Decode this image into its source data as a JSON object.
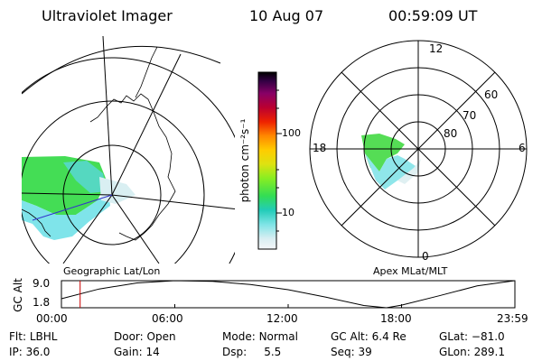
{
  "header": {
    "title": "Ultraviolet Imager",
    "date": "10 Aug 07",
    "time": "00:59:09 UT"
  },
  "colors": {
    "ink": "#000000",
    "marker": "#cc0000",
    "track": "#3333cc"
  },
  "left_panel": {
    "caption": "Geographic Lat/Lon"
  },
  "right_panel": {
    "caption": "Apex MLat/MLT",
    "mlt_labels": [
      "12",
      "18",
      "6",
      "0"
    ],
    "mlat_labels": [
      "60",
      "70",
      "80"
    ]
  },
  "colorbar": {
    "axis_label": "photon cm⁻²s⁻¹",
    "ticks": [
      "100",
      "10"
    ]
  },
  "chart_data": [
    {
      "type": "line",
      "title": "",
      "ylabel": "GC Alt",
      "yticks": [
        "9.0",
        "1.8"
      ],
      "ylim": [
        1.8,
        9.0
      ],
      "xlim": [
        0,
        24
      ],
      "xticks": [
        "00:00",
        "06:00",
        "12:00",
        "18:00",
        "23:59"
      ],
      "series": [
        {
          "x": [
            0,
            2,
            4,
            6,
            8,
            10,
            12,
            14,
            16,
            17.2,
            18,
            20,
            22,
            23.98
          ],
          "y": [
            4.2,
            6.8,
            8.4,
            9.0,
            8.8,
            8.0,
            6.6,
            4.6,
            2.4,
            1.8,
            2.5,
            5.0,
            7.6,
            9.0
          ]
        }
      ],
      "marker_x": 0.99
    }
  ],
  "info": {
    "rows": [
      [
        {
          "label": "Flt:",
          "value": "LBHL"
        },
        {
          "label": "Door:",
          "value": "Open"
        },
        {
          "label": "Mode:",
          "value": "Normal"
        },
        {
          "label": "GC Alt:",
          "value": "6.4 Re"
        },
        {
          "label": "GLat:",
          "value": "−81.0"
        }
      ],
      [
        {
          "label": "IP:",
          "value": "36.0"
        },
        {
          "label": "Gain:",
          "value": "14"
        },
        {
          "label": "Dsp:",
          "value": "5.5"
        },
        {
          "label": "Seq:",
          "value": "39"
        },
        {
          "label": "GLon:",
          "value": "289.1"
        }
      ]
    ]
  }
}
